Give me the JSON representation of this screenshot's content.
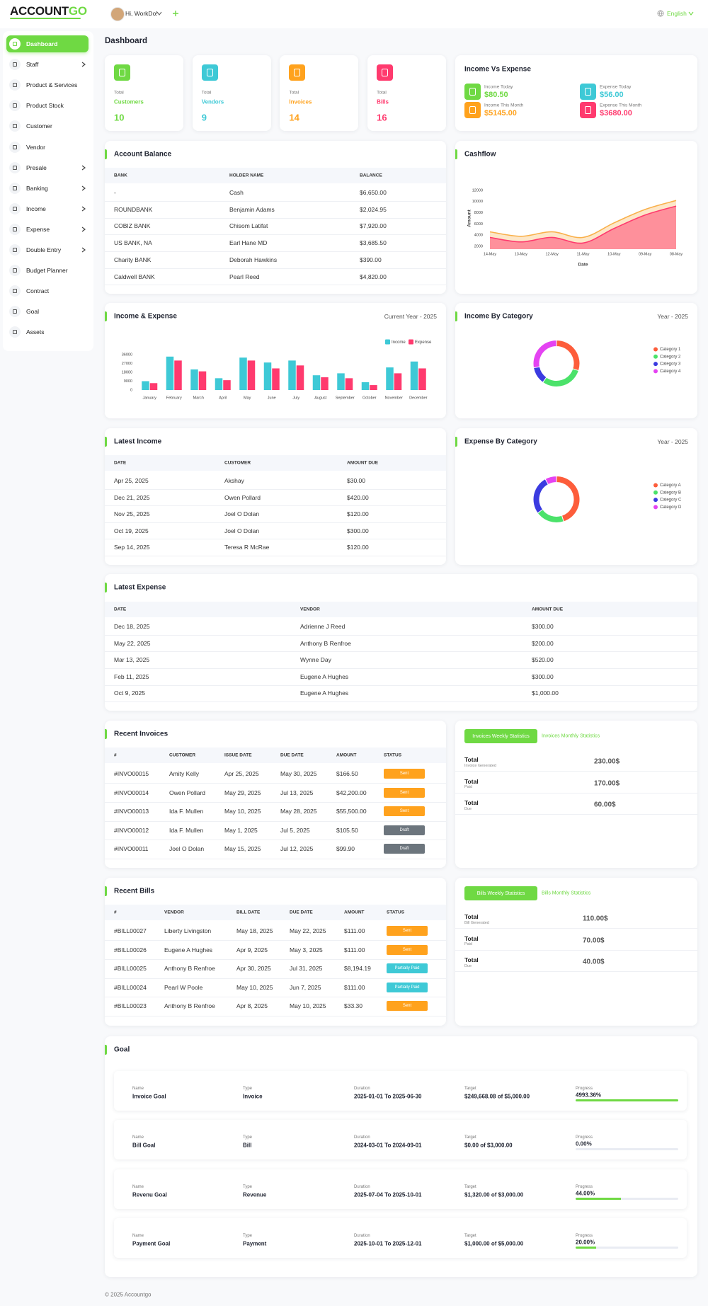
{
  "header": {
    "logo_main": "ACCOUNT",
    "logo_accent": "GO",
    "user": "Hi, WorkDo!",
    "language": "English"
  },
  "sidebar": {
    "items": [
      {
        "label": "Dashboard",
        "active": true
      },
      {
        "label": "Staff",
        "submenu": true
      },
      {
        "label": "Product & Services"
      },
      {
        "label": "Product Stock"
      },
      {
        "label": "Customer"
      },
      {
        "label": "Vendor"
      },
      {
        "label": "Presale",
        "submenu": true
      },
      {
        "label": "Banking",
        "submenu": true
      },
      {
        "label": "Income",
        "submenu": true
      },
      {
        "label": "Expense",
        "submenu": true
      },
      {
        "label": "Double Entry",
        "submenu": true
      },
      {
        "label": "Budget Planner"
      },
      {
        "label": "Contract"
      },
      {
        "label": "Goal"
      },
      {
        "label": "Assets"
      }
    ]
  },
  "page_title": "Dashboard",
  "stats": [
    {
      "label": "Total",
      "title": "Customers",
      "value": 10,
      "color": "#6fd943"
    },
    {
      "label": "Total",
      "title": "Vendors",
      "value": 9,
      "color": "#3ec9d6"
    },
    {
      "label": "Total",
      "title": "Invoices",
      "value": 14,
      "color": "#ffa21d"
    },
    {
      "label": "Total",
      "title": "Bills",
      "value": 16,
      "color": "#ff3a6e"
    }
  ],
  "income_vs_expense": {
    "title": "Income Vs Expense",
    "items": [
      {
        "label": "Income Today",
        "value": "$80.50",
        "color": "#6fd943"
      },
      {
        "label": "Expense Today",
        "value": "$56.00",
        "color": "#3ec9d6"
      },
      {
        "label": "Income This Month",
        "value": "$5145.00",
        "color": "#ffa21d"
      },
      {
        "label": "Expense This Month",
        "value": "$3680.00",
        "color": "#ff3a6e"
      }
    ]
  },
  "account_balance": {
    "title": "Account Balance",
    "columns": [
      "BANK",
      "HOLDER NAME",
      "BALANCE"
    ],
    "rows": [
      [
        "-",
        "Cash",
        "$6,650.00"
      ],
      [
        "ROUNDBANK",
        "Benjamin Adams",
        "$2,024.95"
      ],
      [
        "COBIZ BANK",
        "Chisom Latifat",
        "$7,920.00"
      ],
      [
        "US BANK, NA",
        "Earl Hane MD",
        "$3,685.50"
      ],
      [
        "Charity BANK",
        "Deborah Hawkins",
        "$390.00"
      ],
      [
        "Caldwell BANK",
        "Pearl Reed",
        "$4,820.00"
      ]
    ]
  },
  "latest_income": {
    "title": "Latest Income",
    "columns": [
      "DATE",
      "CUSTOMER",
      "AMOUNT DUE"
    ],
    "rows": [
      [
        "Apr 25, 2025",
        "Akshay",
        "$30.00"
      ],
      [
        "Dec 21, 2025",
        "Owen Pollard",
        "$420.00"
      ],
      [
        "Nov 25, 2025",
        "Joel O Dolan",
        "$120.00"
      ],
      [
        "Oct 19, 2025",
        "Joel O Dolan",
        "$300.00"
      ],
      [
        "Sep 14, 2025",
        "Teresa R McRae",
        "$120.00"
      ]
    ]
  },
  "latest_expense": {
    "title": "Latest Expense",
    "columns": [
      "DATE",
      "VENDOR",
      "AMOUNT DUE"
    ],
    "rows": [
      [
        "Dec 18, 2025",
        "Adrienne J Reed",
        "$300.00"
      ],
      [
        "May 22, 2025",
        "Anthony B Renfroe",
        "$200.00"
      ],
      [
        "Mar 13, 2025",
        "Wynne Day",
        "$520.00"
      ],
      [
        "Feb 11, 2025",
        "Eugene A Hughes",
        "$300.00"
      ],
      [
        "Oct 9, 2025",
        "Eugene A Hughes",
        "$1,000.00"
      ]
    ]
  },
  "recent_invoices": {
    "title": "Recent Invoices",
    "columns": [
      "#",
      "CUSTOMER",
      "ISSUE DATE",
      "DUE DATE",
      "AMOUNT",
      "STATUS"
    ],
    "rows": [
      [
        "#INVO00015",
        "Amity Kelly",
        "Apr 25, 2025",
        "May 30, 2025",
        "$166.50",
        "Sent"
      ],
      [
        "#INVO00014",
        "Owen Pollard",
        "May 29, 2025",
        "Jul 13, 2025",
        "$42,200.00",
        "Sent"
      ],
      [
        "#INVO00013",
        "Ida F. Mullen",
        "May 10, 2025",
        "May 28, 2025",
        "$55,500.00",
        "Sent"
      ],
      [
        "#INVO00012",
        "Ida F. Mullen",
        "May 1, 2025",
        "Jul 5, 2025",
        "$105.50",
        "Draft"
      ],
      [
        "#INVO00011",
        "Joel O Dolan",
        "May 15, 2025",
        "Jul 12, 2025",
        "$99.90",
        "Draft"
      ]
    ]
  },
  "recent_bills": {
    "title": "Recent Bills",
    "columns": [
      "#",
      "VENDOR",
      "BILL DATE",
      "DUE DATE",
      "AMOUNT",
      "STATUS"
    ],
    "rows": [
      [
        "#BILL00027",
        "Liberty Livingston",
        "May 18, 2025",
        "May 22, 2025",
        "$111.00",
        "Sent"
      ],
      [
        "#BILL00026",
        "Eugene A Hughes",
        "Apr 9, 2025",
        "May 3, 2025",
        "$111.00",
        "Sent"
      ],
      [
        "#BILL00025",
        "Anthony B Renfroe",
        "Apr 30, 2025",
        "Jul 31, 2025",
        "$8,194.19",
        "Partially Paid"
      ],
      [
        "#BILL00024",
        "Pearl W Poole",
        "May 10, 2025",
        "Jun 7, 2025",
        "$111.00",
        "Partially Paid"
      ],
      [
        "#BILL00023",
        "Anthony B Renfroe",
        "Apr 8, 2025",
        "May 10, 2025",
        "$33.30",
        "Sent"
      ]
    ]
  },
  "status_colors": {
    "Sent": "#ffa21d",
    "Draft": "#6c757d",
    "Partially Paid": "#3ec9d6"
  },
  "invoice_stats": {
    "tabs": [
      "Invoices Weekly Statistics",
      "Invoices Monthly Statistics"
    ],
    "rows": [
      {
        "label": "Total",
        "sub": "Invoice Generated",
        "value": "230.00$"
      },
      {
        "label": "Total",
        "sub": "Paid",
        "value": "170.00$"
      },
      {
        "label": "Total",
        "sub": "Due",
        "value": "60.00$"
      }
    ]
  },
  "bill_stats": {
    "tabs": [
      "Bills Weekly Statistics",
      "Bills Monthly Statistics"
    ],
    "rows": [
      {
        "label": "Total",
        "sub": "Bill Generated",
        "value": "110.00$"
      },
      {
        "label": "Total",
        "sub": "Paid",
        "value": "70.00$"
      },
      {
        "label": "Total",
        "sub": "Due",
        "value": "40.00$"
      }
    ]
  },
  "goal": {
    "title": "Goal",
    "labels": [
      "Name",
      "Type",
      "Duration",
      "Target",
      "Progress"
    ],
    "items": [
      {
        "name": "Invoice Goal",
        "type": "Invoice",
        "duration": "2025-01-01 To 2025-06-30",
        "target": "$249,668.08 of $5,000.00",
        "progress_label": "4993.36%",
        "progress": 4993.36
      },
      {
        "name": "Bill Goal",
        "type": "Bill",
        "duration": "2024-03-01 To 2024-09-01",
        "target": "$0.00 of $3,000.00",
        "progress_label": "0.00%",
        "progress": 0
      },
      {
        "name": "Revenu Goal",
        "type": "Revenue",
        "duration": "2025-07-04 To 2025-10-01",
        "target": "$1,320.00 of $3,000.00",
        "progress_label": "44.00%",
        "progress": 44
      },
      {
        "name": "Payment Goal",
        "type": "Payment",
        "duration": "2025-10-01 To 2025-12-01",
        "target": "$1,000.00 of $5,000.00",
        "progress_label": "20.00%",
        "progress": 20
      }
    ]
  },
  "footer": "© 2025 Accountgo",
  "chart_data": [
    {
      "type": "area",
      "title": "Cashflow",
      "xlabel": "Date",
      "ylabel": "Amount",
      "categories": [
        "14-May",
        "13-May",
        "12-May",
        "11-May",
        "10-May",
        "09-May",
        "08-May"
      ],
      "series": [
        {
          "color": "#f9b04a",
          "values": [
            4600,
            3800,
            4600,
            3600,
            6200,
            8600,
            10200
          ]
        },
        {
          "color": "#ff3a6e",
          "values": [
            3600,
            2800,
            3600,
            2600,
            5200,
            7600,
            9200
          ]
        }
      ],
      "ylim": [
        1500,
        12500
      ],
      "yticks": [
        2000,
        4000,
        6000,
        8000,
        10000,
        12000
      ]
    },
    {
      "type": "bar",
      "title": "Income & Expense",
      "subtitle": "Current Year - 2025",
      "categories": [
        "January",
        "February",
        "March",
        "April",
        "May",
        "June",
        "July",
        "August",
        "September",
        "October",
        "November",
        "December"
      ],
      "series": [
        {
          "name": "Income",
          "color": "#3ec9d6",
          "values": [
            9000,
            34000,
            21000,
            12000,
            33000,
            28000,
            30000,
            15000,
            17000,
            8000,
            23000,
            29000
          ]
        },
        {
          "name": "Expense",
          "color": "#ff3a6e",
          "values": [
            7000,
            30000,
            19000,
            10000,
            30000,
            22000,
            25000,
            13000,
            12000,
            5000,
            17000,
            22000
          ]
        }
      ],
      "ylim": [
        0,
        36000
      ],
      "yticks": [
        0,
        9000,
        18000,
        27000,
        36000
      ]
    },
    {
      "type": "donut",
      "title": "Income By Category",
      "subtitle": "Year - 2025",
      "categories": [
        "Category 1",
        "Category 2",
        "Category 3",
        "Category 4"
      ],
      "values": [
        30,
        30,
        12,
        28
      ],
      "colors": [
        "#fd5d3b",
        "#4be26a",
        "#3b3be0",
        "#e443f2"
      ]
    },
    {
      "type": "donut",
      "title": "Expense By Category",
      "subtitle": "Year - 2025",
      "categories": [
        "Category A",
        "Category B",
        "Category C",
        "Category D"
      ],
      "values": [
        45,
        20,
        27,
        8
      ],
      "colors": [
        "#fd5d3b",
        "#4be26a",
        "#3b3be0",
        "#e443f2"
      ]
    }
  ]
}
